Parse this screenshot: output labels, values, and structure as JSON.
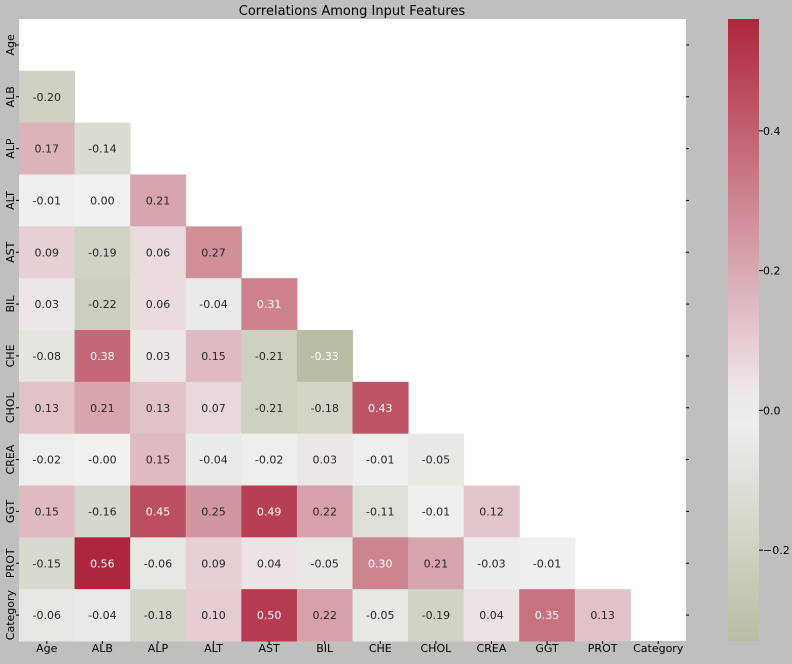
{
  "chart_data": {
    "type": "heatmap",
    "title": "Correlations Among Input Features",
    "xlabel": "",
    "ylabel": "",
    "variables": [
      "Age",
      "ALB",
      "ALP",
      "ALT",
      "AST",
      "BIL",
      "CHE",
      "CHOL",
      "CREA",
      "GGT",
      "PROT",
      "Category"
    ],
    "mask": "upper triangle incl. diagonal",
    "matrix_lower": [
      [],
      [
        -0.2
      ],
      [
        0.17,
        -0.14
      ],
      [
        -0.01,
        0.0,
        0.21
      ],
      [
        0.09,
        -0.19,
        0.06,
        0.27
      ],
      [
        0.03,
        -0.22,
        0.06,
        -0.04,
        0.31
      ],
      [
        -0.08,
        0.38,
        0.03,
        0.15,
        -0.21,
        -0.33
      ],
      [
        0.13,
        0.21,
        0.13,
        0.07,
        -0.21,
        -0.18,
        0.43
      ],
      [
        -0.02,
        -0.0,
        0.15,
        -0.04,
        -0.02,
        0.03,
        -0.01,
        -0.05
      ],
      [
        0.15,
        -0.16,
        0.45,
        0.25,
        0.49,
        0.22,
        -0.11,
        -0.01,
        0.12
      ],
      [
        -0.15,
        0.56,
        -0.06,
        0.09,
        0.04,
        -0.05,
        0.3,
        0.21,
        -0.03,
        -0.01
      ],
      [
        -0.06,
        -0.04,
        -0.18,
        0.1,
        0.5,
        0.22,
        -0.05,
        -0.19,
        0.04,
        0.35,
        0.13
      ]
    ],
    "colorbar": {
      "vmin": -0.33,
      "vmax": 0.56,
      "center": 0.0,
      "ticks": [
        -0.2,
        0.0,
        0.2,
        0.4
      ],
      "tick_labels": [
        "−0.2",
        "0.0",
        "0.2",
        "0.4"
      ],
      "colors": {
        "neg": "#8f9b6e",
        "mid": "#f1f1f1",
        "pos": "#ae263d"
      }
    },
    "grid": false,
    "legend": "colorbar-right"
  }
}
